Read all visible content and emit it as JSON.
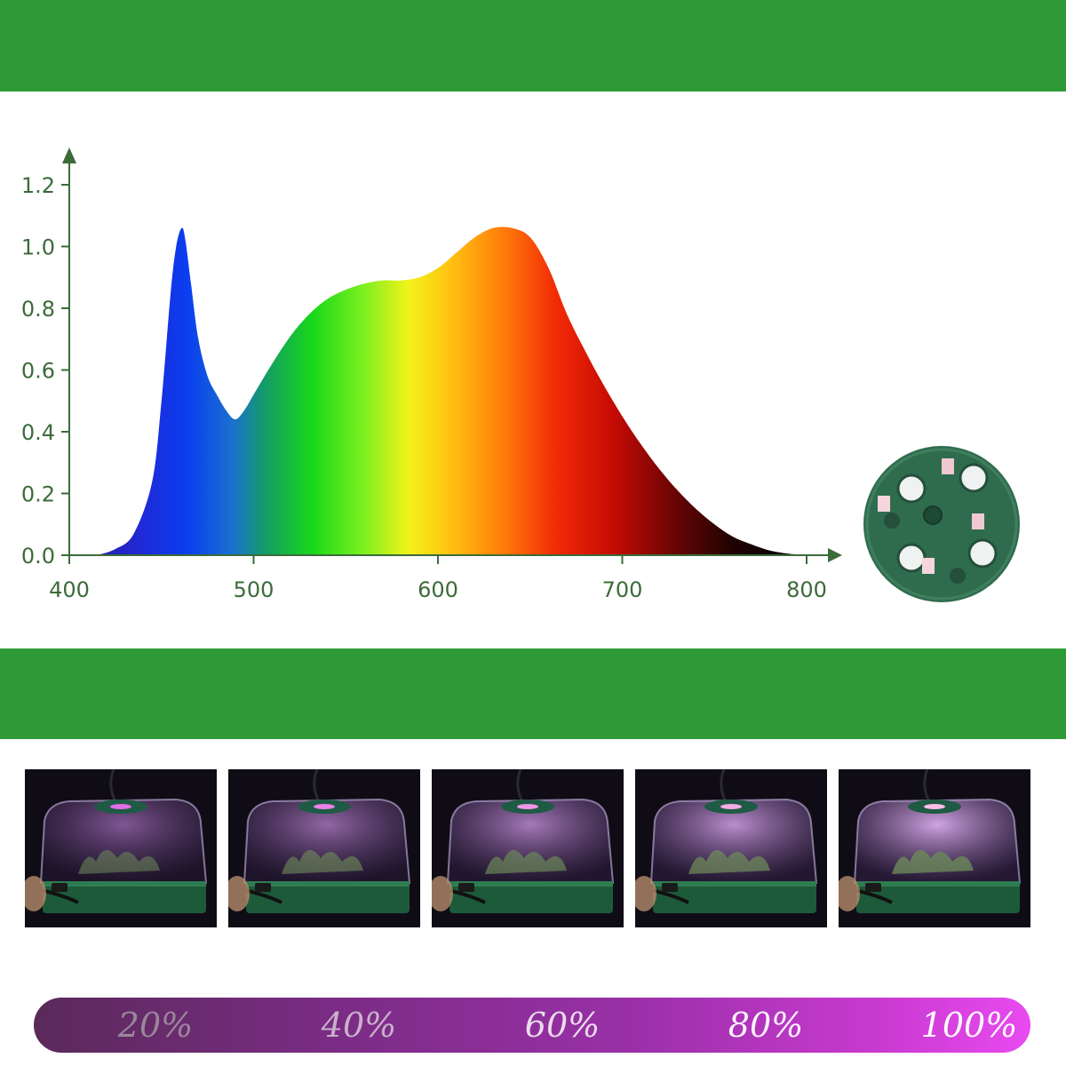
{
  "chart_data": {
    "type": "area",
    "title": "",
    "xlabel": "",
    "ylabel": "",
    "xlim": [
      400,
      800
    ],
    "ylim": [
      0,
      1.2
    ],
    "x_ticks": [
      "400",
      "500",
      "600",
      "700",
      "800"
    ],
    "y_ticks": [
      "0.0",
      "0.2",
      "0.4",
      "0.6",
      "0.8",
      "1.0",
      "1.2"
    ],
    "grid": false,
    "legend": "none",
    "axis_color": "#3c6b3a",
    "series": [
      {
        "x": [
          415,
          425,
          435,
          445,
          450,
          455,
          458,
          461,
          463,
          466,
          470,
          475,
          480,
          485,
          490,
          495,
          500,
          510,
          520,
          530,
          540,
          550,
          560,
          570,
          580,
          590,
          600,
          610,
          620,
          630,
          640,
          650,
          660,
          670,
          680,
          690,
          700,
          710,
          720,
          730,
          740,
          750,
          760,
          770,
          780,
          790,
          800
        ],
        "y": [
          0.0,
          0.02,
          0.07,
          0.24,
          0.5,
          0.85,
          1.0,
          1.06,
          1.02,
          0.88,
          0.7,
          0.58,
          0.52,
          0.47,
          0.44,
          0.47,
          0.52,
          0.62,
          0.71,
          0.78,
          0.83,
          0.86,
          0.88,
          0.89,
          0.89,
          0.9,
          0.93,
          0.98,
          1.03,
          1.06,
          1.06,
          1.03,
          0.93,
          0.78,
          0.66,
          0.55,
          0.45,
          0.36,
          0.28,
          0.21,
          0.15,
          0.1,
          0.06,
          0.035,
          0.015,
          0.005,
          0.0
        ]
      }
    ]
  },
  "brightness_levels": [
    "20%",
    "40%",
    "60%",
    "80%",
    "100%"
  ],
  "colors": {
    "band_green": "#2d9a35",
    "axis": "#3c6b3a",
    "disc": "#2f6c4e",
    "level_bar_start": "#5a2a5a",
    "level_bar_end": "#e84af0"
  }
}
